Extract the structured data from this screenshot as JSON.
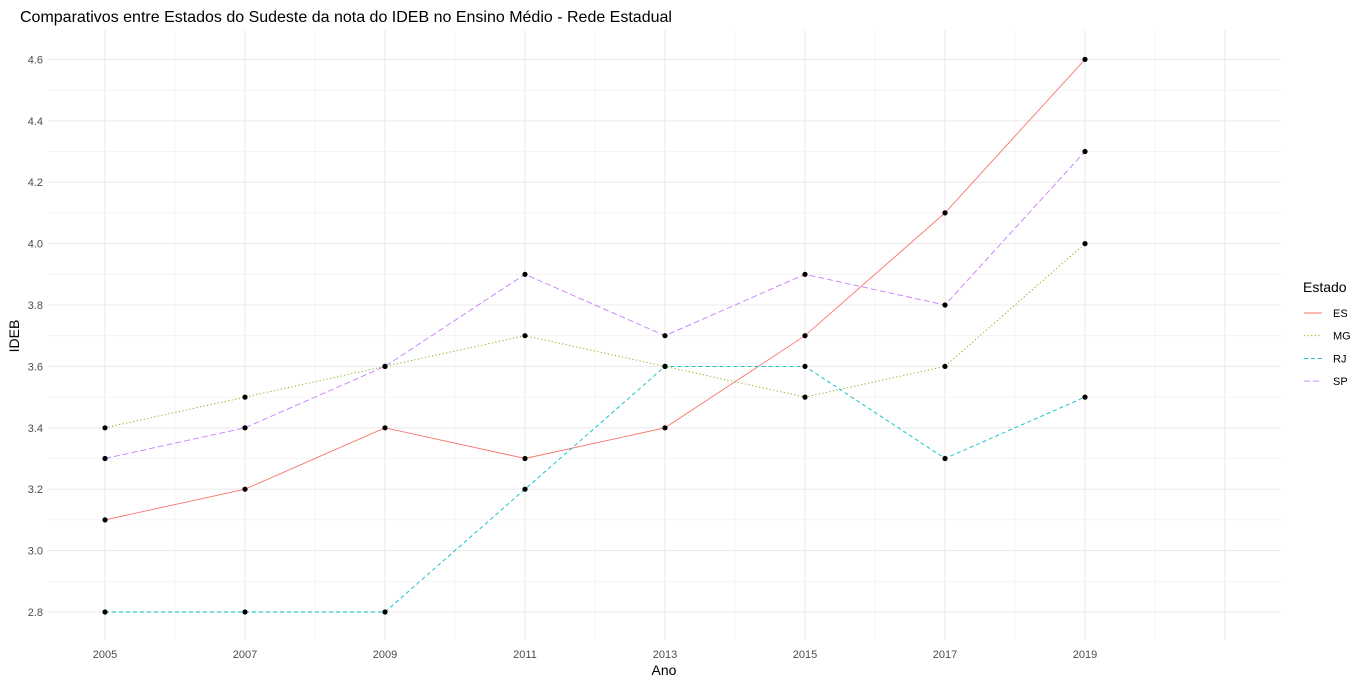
{
  "chart_data": {
    "type": "line",
    "title": "Comparativos entre Estados do Sudeste da nota do IDEB no Ensino Médio - Rede Estadual",
    "xlabel": "Ano",
    "ylabel": "IDEB",
    "x": [
      2005,
      2007,
      2009,
      2011,
      2013,
      2015,
      2017,
      2019
    ],
    "x_tick_labels": [
      "2005",
      "2007",
      "2009",
      "2011",
      "2013",
      "2015",
      "2017",
      "2019"
    ],
    "xlim": [
      2005,
      2021
    ],
    "y_ticks": [
      2.8,
      3.0,
      3.2,
      3.4,
      3.6,
      3.8,
      4.0,
      4.2,
      4.4,
      4.6
    ],
    "y_tick_labels": [
      "2.8",
      "3.0",
      "3.2",
      "3.4",
      "3.6",
      "3.8",
      "4.0",
      "4.2",
      "4.4",
      "4.6"
    ],
    "ylim": [
      2.8,
      4.6
    ],
    "grid": true,
    "legend": {
      "title": "Estado",
      "position": "right"
    },
    "series": [
      {
        "name": "ES",
        "color": "#F8766D",
        "linetype": "solid",
        "values": [
          3.1,
          3.2,
          3.4,
          3.3,
          3.4,
          3.7,
          4.1,
          4.6
        ]
      },
      {
        "name": "MG",
        "color": "#7CAE00",
        "linetype": "dotted",
        "values": [
          3.4,
          3.5,
          3.6,
          3.7,
          3.6,
          3.5,
          3.6,
          4.0
        ]
      },
      {
        "name": "RJ",
        "color": "#00BFC4",
        "linetype": "dashed",
        "values": [
          2.8,
          2.8,
          2.8,
          3.2,
          3.6,
          3.6,
          3.3,
          3.5
        ]
      },
      {
        "name": "SP",
        "color": "#C77CFF",
        "linetype": "longdash",
        "values": [
          3.3,
          3.4,
          3.6,
          3.9,
          3.7,
          3.9,
          3.8,
          4.3
        ]
      }
    ]
  }
}
